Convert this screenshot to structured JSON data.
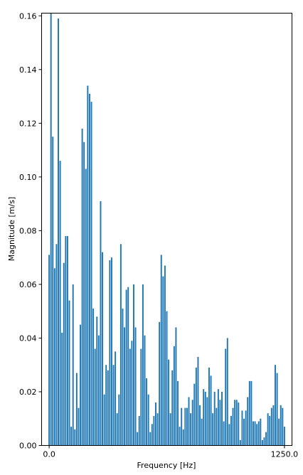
{
  "chart_data": {
    "type": "bar",
    "title": "",
    "xlabel": "Frequency [Hz]",
    "ylabel": "Magnitude [m/s]",
    "bar_color": "#1f77b4",
    "xlim": [
      -40,
      1290
    ],
    "ylim": [
      0,
      0.161
    ],
    "x_ticks": [
      0,
      1250
    ],
    "x_tick_labels": [
      "0.0",
      "1250.0"
    ],
    "y_ticks": [
      0,
      0.02,
      0.04,
      0.06,
      0.08,
      0.1,
      0.12,
      0.14,
      0.16
    ],
    "y_tick_labels": [
      "0.00",
      "0.02",
      "0.04",
      "0.06",
      "0.08",
      "0.10",
      "0.12",
      "0.14",
      "0.16"
    ],
    "grid": false,
    "bar_step": 9.765625,
    "bar_width_fraction": 0.75,
    "values": [
      0.071,
      0.161,
      0.115,
      0.066,
      0.075,
      0.159,
      0.106,
      0.042,
      0.068,
      0.078,
      0.078,
      0.054,
      0.007,
      0.06,
      0.006,
      0.027,
      0.014,
      0.045,
      0.118,
      0.113,
      0.103,
      0.134,
      0.131,
      0.128,
      0.051,
      0.036,
      0.048,
      0.041,
      0.091,
      0.072,
      0.019,
      0.03,
      0.028,
      0.069,
      0.07,
      0.03,
      0.035,
      0.012,
      0.019,
      0.075,
      0.051,
      0.044,
      0.058,
      0.059,
      0.036,
      0.039,
      0.06,
      0.044,
      0.005,
      0.011,
      0.036,
      0.06,
      0.041,
      0.025,
      0.019,
      0.005,
      0.008,
      0.011,
      0.016,
      0.012,
      0.046,
      0.071,
      0.063,
      0.067,
      0.05,
      0.032,
      0.012,
      0.028,
      0.037,
      0.044,
      0.024,
      0.007,
      0.014,
      0.006,
      0.014,
      0.014,
      0.018,
      0.012,
      0.017,
      0.023,
      0.029,
      0.033,
      0.015,
      0.01,
      0.021,
      0.02,
      0.018,
      0.029,
      0.026,
      0.012,
      0.02,
      0.014,
      0.021,
      0.017,
      0.02,
      0.009,
      0.036,
      0.04,
      0.008,
      0.011,
      0.014,
      0.017,
      0.017,
      0.016,
      0.002,
      0.013,
      0.01,
      0.013,
      0.018,
      0.024,
      0.024,
      0.009,
      0.009,
      0.008,
      0.009,
      0.01,
      0.002,
      0.003,
      0.005,
      0.012,
      0.011,
      0.014,
      0.015,
      0.03,
      0.027,
      0.01,
      0.015,
      0.014,
      0.007
    ]
  }
}
